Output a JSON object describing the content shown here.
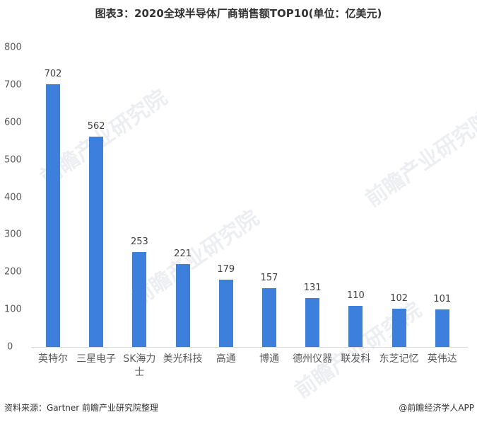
{
  "title": "图表3：2020全球半导体厂商销售额TOP10(单位：亿美元)",
  "y_ticks": [
    "800",
    "700",
    "600",
    "500",
    "400",
    "300",
    "200",
    "100",
    "0"
  ],
  "bars": [
    {
      "label": "英特尔",
      "value": "702"
    },
    {
      "label": "三星电子",
      "value": "562"
    },
    {
      "label": "SK海力士",
      "value": "253"
    },
    {
      "label": "美光科技",
      "value": "221"
    },
    {
      "label": "高通",
      "value": "179"
    },
    {
      "label": "博通",
      "value": "157"
    },
    {
      "label": "德州仪器",
      "value": "131"
    },
    {
      "label": "联发科",
      "value": "110"
    },
    {
      "label": "东芝记忆",
      "value": "102"
    },
    {
      "label": "英伟达",
      "value": "101"
    }
  ],
  "watermark": "前瞻产业研究院",
  "footer": {
    "source": "资料来源：Gartner 前瞻产业研究院整理",
    "credit": "@前瞻经济学人APP"
  },
  "colors": {
    "bar": "#3d7fdc"
  },
  "chart_data": {
    "type": "bar",
    "title": "图表3：2020全球半导体厂商销售额TOP10(单位：亿美元)",
    "categories": [
      "英特尔",
      "三星电子",
      "SK海力士",
      "美光科技",
      "高通",
      "博通",
      "德州仪器",
      "联发科",
      "东芝记忆",
      "英伟达"
    ],
    "values": [
      702,
      562,
      253,
      221,
      179,
      157,
      131,
      110,
      102,
      101
    ],
    "xlabel": "",
    "ylabel": "",
    "ylim": [
      0,
      800
    ],
    "yticks": [
      0,
      100,
      200,
      300,
      400,
      500,
      600,
      700,
      800
    ],
    "grid": false,
    "legend": null,
    "data_labels": true,
    "unit": "亿美元",
    "source": "Gartner 前瞻产业研究院整理"
  }
}
